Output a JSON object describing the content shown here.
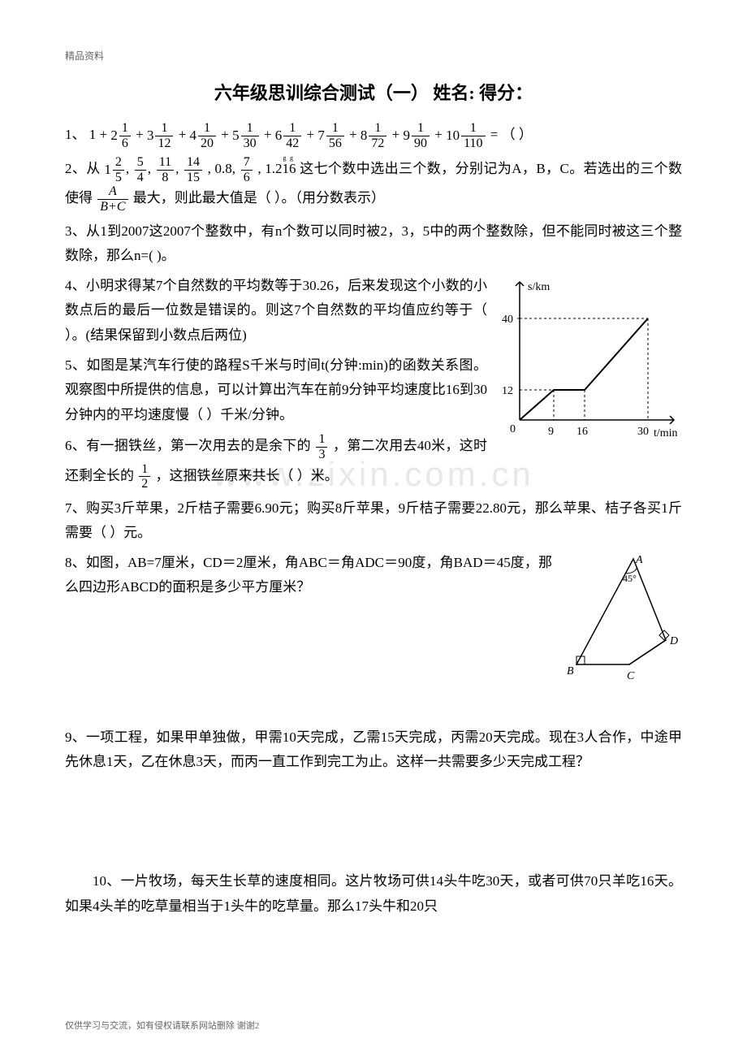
{
  "header_small": "精品资料",
  "title": "六年级思训综合测试（一）  姓名:           得分：",
  "problems": {
    "p1_prefix": "1、",
    "p1_terms": [
      {
        "whole": "1",
        "plus": "+"
      },
      {
        "whole": "2",
        "num": "1",
        "den": "6",
        "plus": "+"
      },
      {
        "whole": "3",
        "num": "1",
        "den": "12",
        "plus": "+"
      },
      {
        "whole": "4",
        "num": "1",
        "den": "20",
        "plus": "+"
      },
      {
        "whole": "5",
        "num": "1",
        "den": "30",
        "plus": "+"
      },
      {
        "whole": "6",
        "num": "1",
        "den": "42",
        "plus": "+"
      },
      {
        "whole": "7",
        "num": "1",
        "den": "56",
        "plus": "+"
      },
      {
        "whole": "8",
        "num": "1",
        "den": "72",
        "plus": "+"
      },
      {
        "whole": "9",
        "num": "1",
        "den": "90",
        "plus": "+"
      },
      {
        "whole": "10",
        "num": "1",
        "den": "110",
        "plus": ""
      }
    ],
    "p1_suffix": " = （        ）",
    "p2_prefix": "2、从",
    "p2_fractions": [
      {
        "whole": "1",
        "num": "2",
        "den": "5"
      },
      {
        "num": "5",
        "den": "4"
      },
      {
        "num": "11",
        "den": "8"
      },
      {
        "num": "14",
        "den": "15"
      }
    ],
    "p2_mid1": ", 0.8, ",
    "p2_frac_76": {
      "num": "7",
      "den": "6"
    },
    "p2_mid2": ", 1.2̈1̈6 这七个数中选出三个数，分别记为A，B，C。若选出的三个数使得",
    "p2_frac_abc": {
      "num": "A",
      "den": "B+C"
    },
    "p2_suffix": "最大，则此最大值是（       ）。（用分数表示）",
    "p3": "3、从1到2007这2007个整数中，有n个数可以同时被2，3，5中的两个整数除，但不能同时被这三个整数除，那么n=(        )。",
    "p4": "4、小明求得某7个自然数的平均数等于30.26，后来发现这个小数的小数点后的最后一位数是错误的。则这7个自然数的平均值应约等于（      ）。(结果保留到小数点后两位)",
    "p5": "5、如图是某汽车行使的路程S千米与时间t(分钟:min)的函数关系图。观察图中所提供的信息，可以计算出汽车在前9分钟平均速度比16到30分钟内的平均速度慢（     ）千米/分钟。",
    "p6_prefix": "6、有一捆铁丝，第一次用去的是余下的",
    "p6_frac": {
      "num": "1",
      "den": "3"
    },
    "p6_mid": "，第二次用去40米，这时还剩全长的",
    "p6_frac2": {
      "num": "1",
      "den": "2"
    },
    "p6_suffix": "，这捆铁丝原来共长（     ）米。",
    "p7": "7、购买3斤苹果，2斤桔子需要6.90元；购买8斤苹果，9斤桔子需要22.80元，那么苹果、桔子各买1斤需要（     ）元。",
    "p8": "8、如图，AB=7厘米，CD＝2厘米，角ABC＝角ADC＝90度，角BAD＝45度，那么四边形ABCD的面积是多少平方厘米？",
    "p9": "9、一项工程，如果甲单独做，甲需10天完成，乙需15天完成，丙需20天完成。现在3人合作，中途甲先休息1天，乙在休息3天，而丙一直工作到完工为止。这样一共需要多少天完成工程？",
    "p10": "10、一片牧场，每天生长草的速度相同。这片牧场可供14头牛吃30天，或者可供70只羊吃16天。如果4头羊的吃草量相当于1头牛的吃草量。那么17头牛和20只"
  },
  "footer": "仅供学习与交流，如有侵权请联系网站删除 谢谢2",
  "watermark": "www.zixin.com.cn",
  "chart": {
    "type": "line",
    "y_label": "s/km",
    "x_label": "t/min",
    "y_ticks": [
      12,
      40
    ],
    "x_ticks": [
      9,
      16,
      30
    ],
    "points": [
      [
        0,
        0
      ],
      [
        9,
        12
      ],
      [
        16,
        12
      ],
      [
        30,
        40
      ]
    ],
    "line_color": "#000000",
    "axis_color": "#000000",
    "dash_color": "#000000",
    "background": "#ffffff"
  },
  "triangle_fig": {
    "labels": {
      "A": "A",
      "B": "B",
      "C": "C",
      "D": "D",
      "angle": "45°"
    },
    "stroke": "#000000",
    "fontsize": 14
  }
}
